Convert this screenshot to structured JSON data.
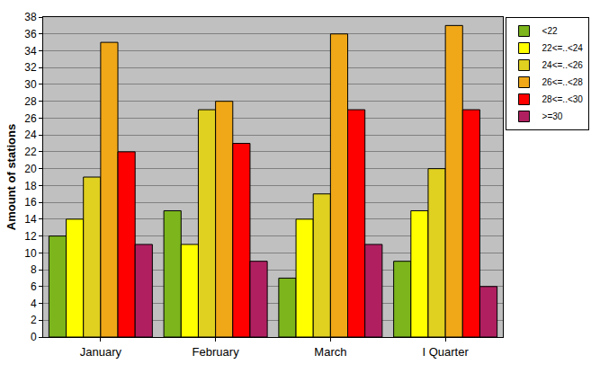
{
  "chart_data": {
    "type": "bar",
    "y_label": "Amount of stations",
    "categories": [
      "January",
      "February",
      "March",
      "I Quarter"
    ],
    "series": [
      {
        "name": "<22",
        "color": "#7cb51c",
        "values": [
          12,
          15,
          7,
          9
        ]
      },
      {
        "name": "22<=..<24",
        "color": "#ffff00",
        "values": [
          14,
          11,
          14,
          15
        ]
      },
      {
        "name": "24<=..<26",
        "color": "#e0d020",
        "values": [
          19,
          27,
          17,
          20
        ]
      },
      {
        "name": "26<=..<28",
        "color": "#f0a818",
        "values": [
          35,
          28,
          36,
          37
        ]
      },
      {
        "name": "28<=..<30",
        "color": "#ff0000",
        "values": [
          22,
          23,
          27,
          27
        ]
      },
      {
        "name": ">=30",
        "color": "#b02060",
        "values": [
          11,
          9,
          11,
          6
        ]
      }
    ],
    "ylim": [
      0,
      38
    ],
    "yticks": [
      0,
      2,
      4,
      6,
      8,
      10,
      12,
      14,
      16,
      18,
      20,
      22,
      24,
      26,
      28,
      30,
      32,
      34,
      36,
      38
    ],
    "grid": true,
    "legend": "top right"
  }
}
